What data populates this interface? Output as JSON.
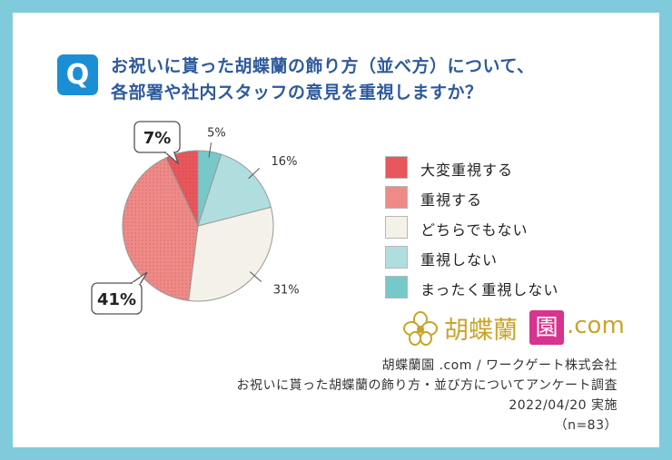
{
  "question": {
    "badge": "Q",
    "line1": "お祝いに貰った胡蝶蘭の飾り方（並べ方）について、",
    "line2": "各部署や社内スタッフの意見を重視しますか？"
  },
  "colors": {
    "very_important": "#e8575c",
    "important": "#ef8a87",
    "neither": "#f4f1e8",
    "not_important": "#b0dedf",
    "not_at_all": "#77c8c9",
    "outline": "#9a9a9a",
    "title": "#2e5a9c",
    "badge": "#1b8fd6",
    "frame": "#7fcbdc"
  },
  "chart_data": {
    "type": "pie",
    "start": "12 o'clock",
    "direction": "clockwise",
    "slices": [
      {
        "name": "まったく重視しない",
        "value": 5,
        "label": "5%",
        "color": "#77c8c9",
        "pattern": "none"
      },
      {
        "name": "重視しない",
        "value": 16,
        "label": "16%",
        "color": "#b0dedf",
        "pattern": "none"
      },
      {
        "name": "どちらでもない",
        "value": 31,
        "label": "31%",
        "color": "#f4f1e8",
        "pattern": "none"
      },
      {
        "name": "重視する",
        "value": 41,
        "label": "41%",
        "color": "#ef8a87",
        "pattern": "dots",
        "callout": true
      },
      {
        "name": "大変重視する",
        "value": 7,
        "label": "7%",
        "color": "#e8575c",
        "pattern": "dots",
        "callout": true
      }
    ],
    "legend": [
      "大変重視する",
      "重視する",
      "どちらでもない",
      "重視しない",
      "まったく重視しない"
    ],
    "legend_position": "right"
  },
  "logo": {
    "brand": "胡蝶蘭",
    "square": "園",
    "domain": ".com"
  },
  "source": {
    "line1": "胡蝶蘭園 .com / ワークゲート株式会社",
    "line2": "お祝いに貰った胡蝶蘭の飾り方・並び方についてアンケート調査",
    "line3": "2022/04/20 実施",
    "line4": "（n=83）"
  }
}
